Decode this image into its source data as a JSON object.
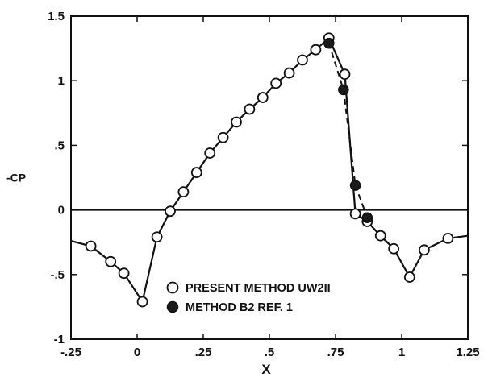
{
  "chart_data": {
    "type": "scatter",
    "title": "",
    "xlabel": "X",
    "ylabel": "-CP",
    "xlim": [
      -0.25,
      1.25
    ],
    "ylim": [
      -1,
      1.5
    ],
    "x_ticks": [
      -0.25,
      0,
      0.25,
      0.5,
      0.75,
      1,
      1.25
    ],
    "x_tick_labels": [
      "-.25",
      "0",
      ".25",
      ".5",
      ".75",
      "1",
      "1.25"
    ],
    "y_ticks": [
      -1,
      -0.5,
      0,
      0.5,
      1,
      1.5
    ],
    "y_tick_labels": [
      "-1",
      "-.5",
      "0",
      ".5",
      "1",
      "1.5"
    ],
    "grid": false,
    "zero_line": true,
    "legend_position": "bottom-center",
    "colors": {
      "present_method": "#ffffff",
      "ref_method": "#1a1a1a",
      "axis": "#111111"
    },
    "series": [
      {
        "name": "PRESENT METHOD UW2II",
        "marker": "open-circle",
        "line": "solid",
        "x": [
          -0.25,
          -0.175,
          -0.1,
          -0.05,
          0.02,
          0.075,
          0.125,
          0.175,
          0.225,
          0.275,
          0.325,
          0.375,
          0.425,
          0.475,
          0.525,
          0.575,
          0.625,
          0.675,
          0.725,
          0.785,
          0.825,
          0.87,
          0.92,
          0.97,
          1.03,
          1.085,
          1.175,
          1.25
        ],
        "y": [
          -0.24,
          -0.28,
          -0.4,
          -0.49,
          -0.71,
          -0.21,
          -0.01,
          0.14,
          0.29,
          0.44,
          0.56,
          0.68,
          0.78,
          0.87,
          0.98,
          1.06,
          1.16,
          1.24,
          1.33,
          1.05,
          -0.03,
          -0.09,
          -0.2,
          -0.3,
          -0.52,
          -0.31,
          -0.22,
          -0.2
        ],
        "show_marker": [
          false,
          true,
          true,
          true,
          true,
          true,
          true,
          true,
          true,
          true,
          true,
          true,
          true,
          true,
          true,
          true,
          true,
          true,
          true,
          true,
          true,
          true,
          true,
          true,
          true,
          true,
          true,
          false
        ]
      },
      {
        "name": "METHOD  B2 REF. 1",
        "marker": "filled-circle",
        "line": "dashed",
        "x": [
          0.725,
          0.78,
          0.825,
          0.87
        ],
        "y": [
          1.29,
          0.93,
          0.19,
          -0.06
        ]
      }
    ]
  }
}
